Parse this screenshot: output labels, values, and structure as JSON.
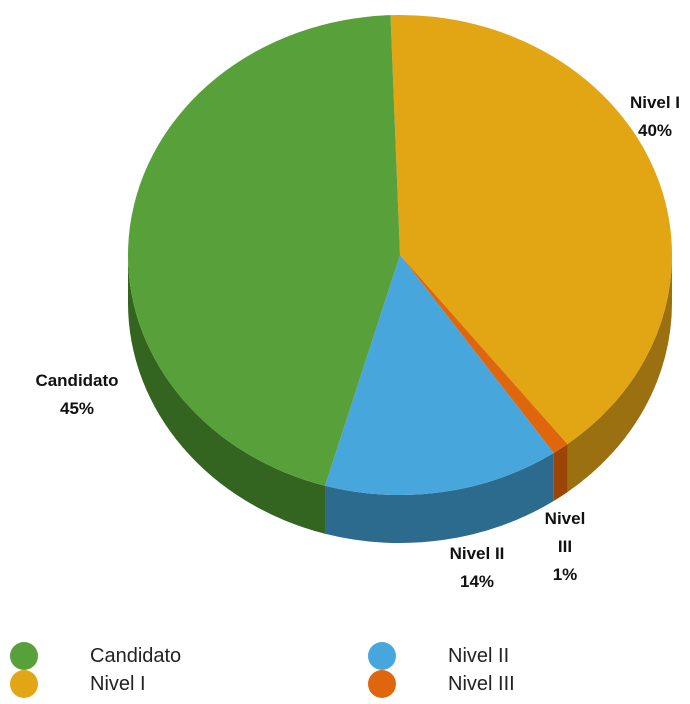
{
  "chart_data": {
    "type": "pie",
    "style": "3d",
    "title": "",
    "slices": [
      {
        "label": "Nivel I",
        "value": 40,
        "percent_label": "40%",
        "color": "#E2A513",
        "side_color": "#9A7010"
      },
      {
        "label": "Nivel III",
        "value": 1,
        "percent_label": "1%",
        "color": "#E0660E",
        "side_color": "#9C4508"
      },
      {
        "label": "Nivel II",
        "value": 14,
        "percent_label": "14%",
        "color": "#47A6DC",
        "side_color": "#2C6B8E"
      },
      {
        "label": "Candidato",
        "value": 45,
        "percent_label": "45%",
        "color": "#58A13A",
        "side_color": "#336420"
      }
    ],
    "legend": {
      "placement": "bottom",
      "items": [
        {
          "label": "Candidato",
          "color": "#58A13A"
        },
        {
          "label": "Nivel II",
          "color": "#47A6DC"
        },
        {
          "label": "Nivel I",
          "color": "#E2A513"
        },
        {
          "label": "Nivel III",
          "color": "#E0660E"
        }
      ]
    }
  }
}
